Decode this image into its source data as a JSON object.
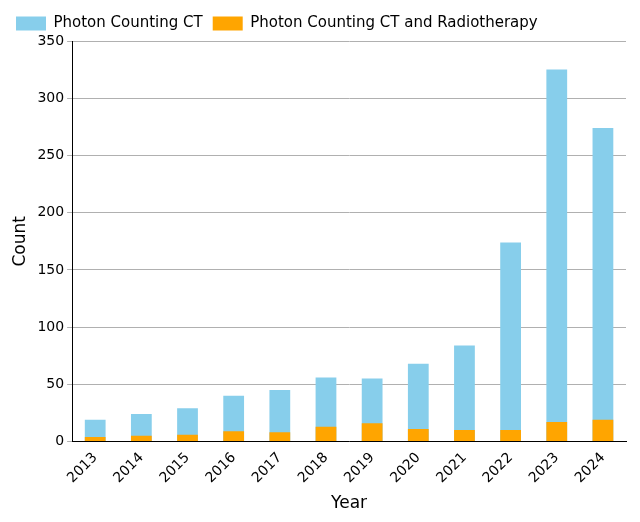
{
  "chart_data": {
    "type": "bar",
    "x_label": "Year",
    "y_label": "Count",
    "categories": [
      "2013",
      "2014",
      "2015",
      "2016",
      "2017",
      "2018",
      "2019",
      "2020",
      "2021",
      "2022",
      "2023",
      "2024"
    ],
    "series": [
      {
        "name": "Photon Counting CT",
        "color": "#87ceeb",
        "values": [
          19,
          24,
          29,
          40,
          45,
          56,
          55,
          68,
          84,
          174,
          325,
          274
        ]
      },
      {
        "name": "Photon Counting CT and Radiotherapy",
        "color": "#ffa500",
        "values": [
          4,
          5,
          6,
          9,
          8,
          13,
          16,
          11,
          10,
          10,
          17,
          19
        ]
      }
    ],
    "stacked": false,
    "ylim": [
      0,
      350
    ],
    "yticks": [
      0,
      50,
      100,
      150,
      200,
      250,
      300,
      350
    ],
    "grid": true,
    "legend": "upper left"
  }
}
